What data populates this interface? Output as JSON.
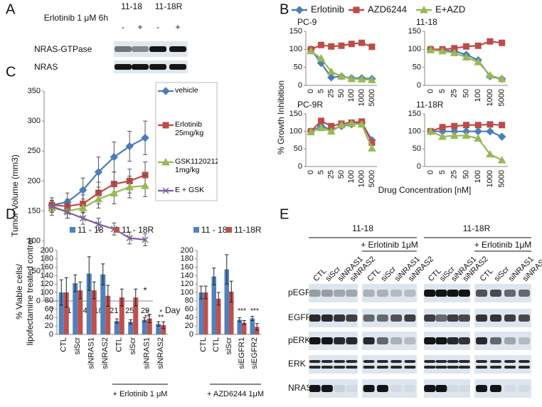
{
  "panel_labels": [
    "A",
    "B",
    "C",
    "D",
    "E"
  ],
  "blot_a": {
    "columns": [
      "11-18",
      "11-18R"
    ],
    "treatment": "Erlotinib 1 μM 6h",
    "lanes": [
      "-",
      "+",
      "-",
      "+"
    ],
    "rows": [
      "NRAS-GTPase",
      "NRAS"
    ]
  },
  "chart_data": [
    {
      "type": "line",
      "legend": [
        {
          "name": "Erlotinib",
          "color": "#4a7ebb",
          "marker": "diamond"
        },
        {
          "name": "AZD6244",
          "color": "#be4b48",
          "marker": "square"
        },
        {
          "name": "E+AZD",
          "color": "#98b954",
          "marker": "triangle"
        }
      ],
      "y_label": "% Growth Inhibition",
      "x_label": "Drug Concentration [nM]",
      "categories": [
        "0",
        "5",
        "25",
        "50",
        "100",
        "1000",
        "5000"
      ],
      "ylim": [
        0,
        150
      ],
      "yticks": [
        0,
        50,
        100,
        150
      ],
      "subplots": [
        {
          "title": "PC-9",
          "series": [
            {
              "values": [
                100,
                62,
                22,
                25,
                20,
                20,
                18
              ]
            },
            {
              "values": [
                100,
                112,
                108,
                110,
                115,
                118,
                107
              ]
            },
            {
              "values": [
                95,
                75,
                38,
                25,
                18,
                17,
                15
              ]
            }
          ]
        },
        {
          "title": "11-18",
          "series": [
            {
              "values": [
                100,
                98,
                95,
                85,
                70,
                25,
                18
              ]
            },
            {
              "values": [
                100,
                100,
                103,
                108,
                110,
                122,
                118
              ]
            },
            {
              "values": [
                98,
                95,
                90,
                78,
                65,
                28,
                18
              ]
            }
          ]
        },
        {
          "title": "PC-9R",
          "series": [
            {
              "values": [
                100,
                115,
                105,
                115,
                120,
                125,
                75
              ]
            },
            {
              "values": [
                100,
                130,
                115,
                122,
                125,
                128,
                68
              ]
            },
            {
              "values": [
                98,
                110,
                100,
                118,
                122,
                120,
                52
              ]
            }
          ]
        },
        {
          "title": "11-18R",
          "series": [
            {
              "values": [
                100,
                100,
                100,
                100,
                100,
                100,
                85
              ]
            },
            {
              "values": [
                100,
                112,
                115,
                118,
                118,
                120,
                118
              ]
            },
            {
              "values": [
                100,
                85,
                88,
                88,
                80,
                35,
                18
              ]
            }
          ]
        }
      ]
    },
    {
      "type": "line",
      "y_label": "Tumor Volume (mm3)",
      "x_label": "Day",
      "categories": [
        "7",
        "11",
        "14",
        "18",
        "21",
        "25",
        "29"
      ],
      "ylim": [
        0,
        350
      ],
      "yticks": [
        0,
        50,
        100,
        150,
        200,
        250,
        300,
        350
      ],
      "series": [
        {
          "name": "vehicle",
          "color": "#4a7ebb",
          "marker": "diamond",
          "values": [
            160,
            165,
            185,
            215,
            240,
            258,
            272
          ],
          "errors": [
            12,
            15,
            20,
            25,
            25,
            25,
            28
          ]
        },
        {
          "name": "Erlotinib 25mg/kg",
          "color": "#be4b48",
          "marker": "square",
          "values": [
            160,
            158,
            162,
            180,
            195,
            200,
            210
          ],
          "errors": [
            12,
            12,
            15,
            18,
            20,
            20,
            22
          ]
        },
        {
          "name": "GSK1120212 1mg/kg",
          "color": "#98b954",
          "marker": "triangle",
          "values": [
            155,
            150,
            155,
            170,
            180,
            190,
            192
          ],
          "errors": [
            12,
            12,
            15,
            15,
            18,
            18,
            18
          ]
        },
        {
          "name": "E + GSK",
          "color": "#7d60a0",
          "marker": "x",
          "values": [
            158,
            148,
            138,
            128,
            120,
            105,
            102
          ],
          "errors": [
            10,
            10,
            10,
            10,
            10,
            10,
            10
          ]
        }
      ],
      "annotations": [
        "*"
      ]
    },
    {
      "type": "bar",
      "y_label": [
        "% Viable cells/",
        "lipofectamine treated control"
      ],
      "categories": [
        "CTL",
        "siScr",
        "siNRAS1",
        "siNRAS2",
        "CTL",
        "siScr",
        "siNRAS1",
        "siNRAS2"
      ],
      "group_label": "+ Erlotinib 1 μM",
      "ylim": [
        0,
        200
      ],
      "yticks": [
        0,
        20,
        40,
        60,
        80,
        100,
        120,
        140,
        160,
        180,
        200
      ],
      "series": [
        {
          "name": "11 - 18",
          "color": "#4f81bd",
          "values": [
            100,
            122,
            145,
            143,
            32,
            30,
            35,
            25
          ],
          "errors": [
            30,
            20,
            40,
            25,
            5,
            5,
            5,
            5
          ]
        },
        {
          "name": "11 - 18R",
          "color": "#c0504d",
          "values": [
            100,
            105,
            105,
            92,
            88,
            88,
            38,
            22
          ],
          "errors": [
            35,
            20,
            20,
            25,
            20,
            20,
            10,
            8
          ]
        }
      ],
      "annotations": [
        "*",
        "*",
        "**",
        "**"
      ]
    },
    {
      "type": "bar",
      "categories": [
        "CTL",
        "CTL",
        "siScr",
        "siEGFR1",
        "siEGFR2"
      ],
      "group_label": "+ AZD6244 1μM",
      "ylim": [
        0,
        200
      ],
      "yticks": [
        0,
        20,
        40,
        60,
        80,
        100,
        120,
        140,
        160,
        180,
        200
      ],
      "series": [
        {
          "name": "11 - 18",
          "color": "#4f81bd",
          "values": [
            100,
            138,
            155,
            35,
            38
          ],
          "errors": [
            15,
            20,
            35,
            5,
            5
          ]
        },
        {
          "name": "11-18R",
          "color": "#c0504d",
          "values": [
            100,
            85,
            102,
            28,
            18
          ],
          "errors": [
            15,
            15,
            25,
            5,
            8
          ]
        }
      ],
      "annotations": [
        "***",
        "***"
      ]
    }
  ],
  "blot_e": {
    "cell_lines": [
      "11-18",
      "11-18R"
    ],
    "treatment": "+ Erlotinib 1μM",
    "lanes": [
      "CTL",
      "siScr",
      "siNRAS1",
      "siNRAS2"
    ],
    "rows": [
      "pEGFR",
      "EGFR",
      "pERK",
      "ERK",
      "NRAS"
    ]
  }
}
